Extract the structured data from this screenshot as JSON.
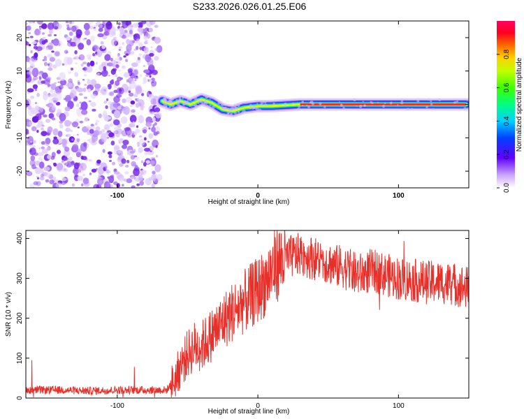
{
  "title": "S233.2026.026.01.25.E06",
  "chart_data": [
    {
      "type": "heatmap",
      "name": "spectrogram",
      "xlabel": "Height of straight line (km)",
      "ylabel": "Frequency (Hz)",
      "xlim": [
        -165,
        150
      ],
      "ylim": [
        -25,
        25
      ],
      "xticks": [
        "-100",
        "0",
        "100"
      ],
      "yticks": [
        "20",
        "10",
        "0",
        "-10",
        "-20"
      ],
      "colorbar": {
        "label": "Normalized spectral amplitude",
        "range": [
          0,
          1
        ],
        "ticks": [
          "0.0",
          "0.2",
          "0.4",
          "0.6",
          "0.8"
        ]
      },
      "noise_region_x": [
        -165,
        -70
      ],
      "ridge": [
        {
          "x": -68,
          "y": 1
        },
        {
          "x": -62,
          "y": 0
        },
        {
          "x": -55,
          "y": 1
        },
        {
          "x": -48,
          "y": 0
        },
        {
          "x": -40,
          "y": 1.5
        },
        {
          "x": -33,
          "y": 0.5
        },
        {
          "x": -25,
          "y": -1.5
        },
        {
          "x": -18,
          "y": -2
        },
        {
          "x": -10,
          "y": -1
        },
        {
          "x": 0,
          "y": -0.5
        },
        {
          "x": 10,
          "y": -0.5
        },
        {
          "x": 30,
          "y": 0
        },
        {
          "x": 60,
          "y": 0
        },
        {
          "x": 100,
          "y": 0
        },
        {
          "x": 148,
          "y": 0
        }
      ]
    },
    {
      "type": "line",
      "name": "snr",
      "xlabel": "Height of straight line (km)",
      "ylabel": "SNR (10 * v/v)",
      "xlim": [
        -165,
        150
      ],
      "ylim": [
        0,
        420
      ],
      "xticks": [
        "-100",
        "0",
        "100"
      ],
      "yticks": [
        "400",
        "300",
        "200",
        "100",
        "0"
      ],
      "series": [
        {
          "name": "SNR",
          "color": "#e8302a",
          "x": [
            -165,
            -140,
            -120,
            -100,
            -80,
            -65,
            -60,
            -55,
            -50,
            -45,
            -40,
            -35,
            -30,
            -25,
            -20,
            -15,
            -10,
            -5,
            0,
            5,
            10,
            15,
            20,
            25,
            30,
            35,
            40,
            45,
            50,
            55,
            60,
            65,
            70,
            75,
            80,
            85,
            90,
            95,
            100,
            110,
            120,
            130,
            140,
            150
          ],
          "y": [
            20,
            20,
            18,
            20,
            20,
            20,
            40,
            80,
            110,
            130,
            130,
            150,
            170,
            190,
            210,
            225,
            240,
            255,
            270,
            290,
            320,
            340,
            350,
            355,
            360,
            355,
            350,
            345,
            340,
            330,
            330,
            320,
            310,
            310,
            320,
            315,
            310,
            305,
            300,
            295,
            290,
            290,
            285,
            275
          ]
        }
      ]
    }
  ]
}
